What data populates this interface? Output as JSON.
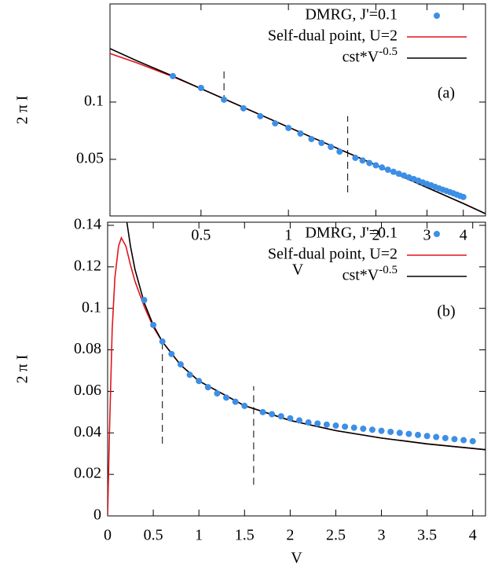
{
  "chart_data": [
    {
      "type": "line",
      "xlabel": "V",
      "ylabel": "2 π I",
      "annotation": "(a)",
      "xscale": "log",
      "yscale": "log",
      "xlim": [
        0.243,
        4.77
      ],
      "ylim": [
        0.0252,
        0.328
      ],
      "xticks": [
        0.5,
        1,
        2,
        3,
        4
      ],
      "yticks": [
        0.05,
        0.1
      ],
      "legend": "top right",
      "series": [
        {
          "name": "DMRG, J'=0.1",
          "mode": "markers",
          "color": "#3d8fe6",
          "x": [
            0.4,
            0.5,
            0.6,
            0.7,
            0.8,
            0.9,
            1.0,
            1.1,
            1.2,
            1.3,
            1.4,
            1.5,
            1.7,
            1.8,
            1.9,
            2.0,
            2.1,
            2.2,
            2.3,
            2.4,
            2.5,
            2.6,
            2.7,
            2.8,
            2.9,
            3.0,
            3.1,
            3.2,
            3.3,
            3.4,
            3.5,
            3.6,
            3.7,
            3.8,
            3.9,
            4.0
          ],
          "values": [
            0.1369,
            0.1187,
            0.1029,
            0.0927,
            0.0843,
            0.0773,
            0.0731,
            0.0683,
            0.0639,
            0.061,
            0.0581,
            0.0549,
            0.0509,
            0.0493,
            0.0478,
            0.0465,
            0.0453,
            0.0441,
            0.043,
            0.042,
            0.0411,
            0.0402,
            0.0394,
            0.0386,
            0.0378,
            0.0371,
            0.0365,
            0.0358,
            0.0352,
            0.0346,
            0.0341,
            0.0336,
            0.0331,
            0.0326,
            0.0321,
            0.0317
          ]
        },
        {
          "name": "Self-dual point, U=2",
          "mode": "line",
          "color": "#e3141b",
          "x": [
            0.243,
            0.3,
            0.4,
            0.5,
            1,
            2,
            4,
            4.77
          ],
          "values": [
            0.18,
            0.161,
            0.136,
            0.1176,
            0.0738,
            0.0467,
            0.0293,
            0.0259
          ]
        },
        {
          "name": "cst*V^-0.5",
          "mode": "line",
          "color": "#000000",
          "x": [
            0.243,
            0.3,
            0.4,
            0.5,
            1,
            2,
            4,
            4.77
          ],
          "values": [
            0.191,
            0.165,
            0.137,
            0.1176,
            0.0738,
            0.0467,
            0.0293,
            0.0259
          ]
        }
      ],
      "vlines": [
        {
          "x": 0.6,
          "y": [
            0.1,
            0.153
          ]
        },
        {
          "x": 1.6,
          "y": [
            0.0335,
            0.0843
          ]
        }
      ]
    },
    {
      "type": "line",
      "xlabel": "V",
      "ylabel": "2 π I",
      "annotation": "(b)",
      "xlim": [
        0,
        4.14
      ],
      "ylim": [
        0,
        0.1415
      ],
      "xticks": [
        0,
        0.5,
        1,
        1.5,
        2,
        2.5,
        3,
        3.5,
        4
      ],
      "yticks": [
        0,
        0.02,
        0.04,
        0.06,
        0.08,
        0.1,
        0.12,
        0.14
      ],
      "legend": "top right",
      "series": [
        {
          "name": "DMRG, J'=0.1",
          "mode": "markers",
          "color": "#3d8fe6",
          "x": [
            0.4,
            0.5,
            0.6,
            0.7,
            0.8,
            0.9,
            1.0,
            1.1,
            1.2,
            1.3,
            1.4,
            1.5,
            1.7,
            1.8,
            1.9,
            2.0,
            2.1,
            2.2,
            2.3,
            2.4,
            2.5,
            2.6,
            2.7,
            2.8,
            2.9,
            3.0,
            3.1,
            3.2,
            3.3,
            3.4,
            3.5,
            3.6,
            3.7,
            3.8,
            3.9,
            4.0
          ],
          "values": [
            0.104,
            0.092,
            0.084,
            0.078,
            0.073,
            0.068,
            0.065,
            0.062,
            0.059,
            0.057,
            0.055,
            0.053,
            0.05,
            0.049,
            0.048,
            0.047,
            0.046,
            0.045,
            0.0445,
            0.044,
            0.0435,
            0.043,
            0.0425,
            0.042,
            0.0415,
            0.041,
            0.0405,
            0.04,
            0.0395,
            0.039,
            0.0385,
            0.038,
            0.0375,
            0.037,
            0.0365,
            0.036
          ]
        },
        {
          "name": "Self-dual point, U=2",
          "mode": "line",
          "color": "#e3141b",
          "x": [
            0,
            0.02,
            0.05,
            0.08,
            0.12,
            0.15,
            0.2,
            0.25,
            0.3,
            0.4,
            0.5,
            0.6,
            0.8,
            1,
            1.5,
            2,
            2.5,
            3,
            3.5,
            4,
            4.14
          ],
          "values": [
            0,
            0.04,
            0.09,
            0.115,
            0.13,
            0.134,
            0.13,
            0.121,
            0.113,
            0.101,
            0.091,
            0.0839,
            0.0727,
            0.065,
            0.0531,
            0.046,
            0.0411,
            0.0375,
            0.0347,
            0.0325,
            0.0319
          ]
        },
        {
          "name": "cst*V^-0.5",
          "mode": "line",
          "color": "#000000",
          "x": [
            0.21,
            0.25,
            0.3,
            0.4,
            0.5,
            0.6,
            0.8,
            1,
            1.5,
            2,
            2.5,
            3,
            3.5,
            4,
            4.14
          ],
          "values": [
            0.1418,
            0.13,
            0.1187,
            0.1028,
            0.0919,
            0.0839,
            0.0727,
            0.065,
            0.0531,
            0.046,
            0.0411,
            0.0375,
            0.0347,
            0.0325,
            0.0319
          ]
        }
      ],
      "vlines": [
        {
          "x": 0.6,
          "y": [
            0.0348,
            0.0832
          ]
        },
        {
          "x": 1.6,
          "y": [
            0.015,
            0.0625
          ]
        }
      ]
    }
  ]
}
